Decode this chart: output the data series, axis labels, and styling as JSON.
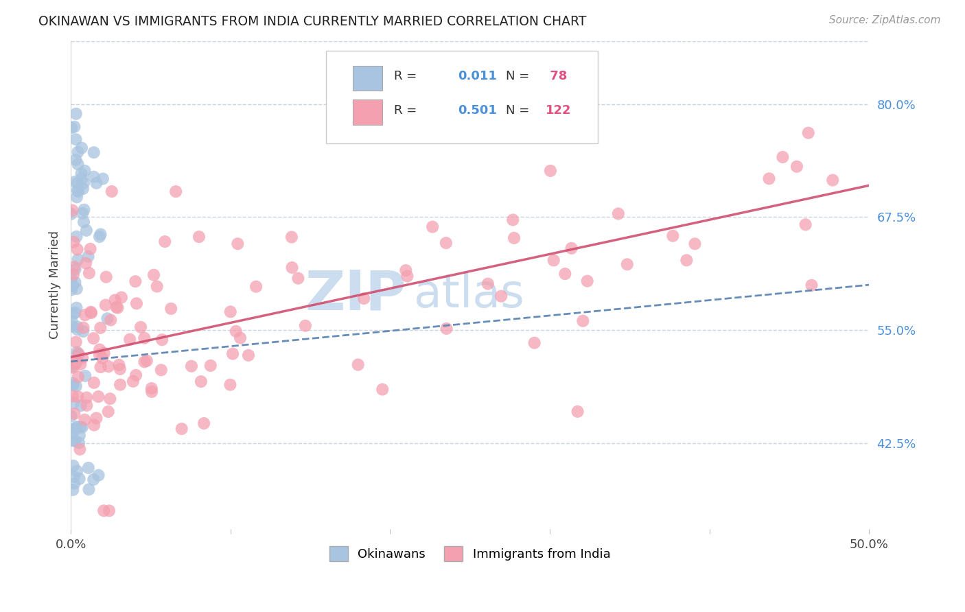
{
  "title": "OKINAWAN VS IMMIGRANTS FROM INDIA CURRENTLY MARRIED CORRELATION CHART",
  "source": "Source: ZipAtlas.com",
  "ylabel": "Currently Married",
  "xlim": [
    0.0,
    0.5
  ],
  "ylim": [
    0.33,
    0.87
  ],
  "xtick_pos": [
    0.0,
    0.1,
    0.2,
    0.3,
    0.4,
    0.5
  ],
  "xtick_labels": [
    "0.0%",
    "",
    "",
    "",
    "",
    "50.0%"
  ],
  "ytick_values_right": [
    0.8,
    0.675,
    0.55,
    0.425
  ],
  "ytick_labels_right": [
    "80.0%",
    "67.5%",
    "55.0%",
    "42.5%"
  ],
  "blue_color": "#a8c4e0",
  "pink_color": "#f4a0b0",
  "blue_line_color": "#5580b0",
  "pink_line_color": "#d05070",
  "watermark_color": "#ccddef",
  "background_color": "#ffffff",
  "grid_color": "#c8d4e0",
  "title_color": "#222222",
  "source_color": "#999999",
  "ylabel_color": "#444444",
  "ytick_color": "#4a90d9",
  "xtick_color": "#444444",
  "legend_text_color": "#333333",
  "legend_num_color": "#4a90d9",
  "legend_n_color": "#e05080"
}
